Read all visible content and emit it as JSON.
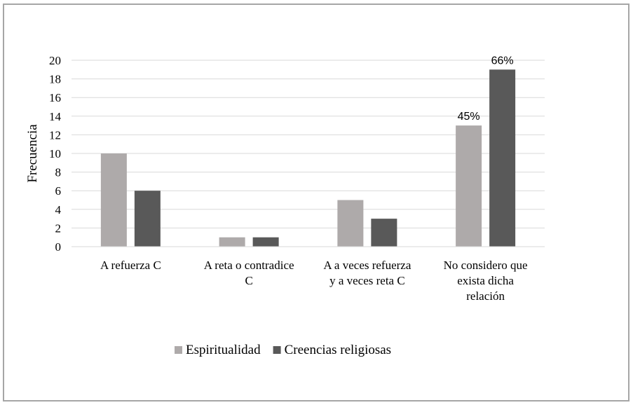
{
  "chart_data": {
    "type": "bar",
    "title": "",
    "xlabel": "",
    "ylabel": "Frecuencia",
    "ylim": [
      0,
      20
    ],
    "yticks": [
      0,
      2,
      4,
      6,
      8,
      10,
      12,
      14,
      16,
      18,
      20
    ],
    "grid": true,
    "legend_position": "bottom",
    "categories": [
      [
        "A refuerza C"
      ],
      [
        "A reta o contradice",
        "C"
      ],
      [
        "A a veces refuerza",
        "y a veces reta C"
      ],
      [
        "No considero que",
        "exista dicha",
        "relación"
      ]
    ],
    "series": [
      {
        "name": "Espiritualidad",
        "color": "#aeaaaa",
        "values": [
          10,
          1,
          5,
          13
        ],
        "labels": [
          "",
          "",
          "",
          "45%"
        ]
      },
      {
        "name": "Creencias religiosas",
        "color": "#595959",
        "values": [
          6,
          1,
          3,
          19
        ],
        "labels": [
          "",
          "",
          "",
          "66%"
        ]
      }
    ]
  }
}
